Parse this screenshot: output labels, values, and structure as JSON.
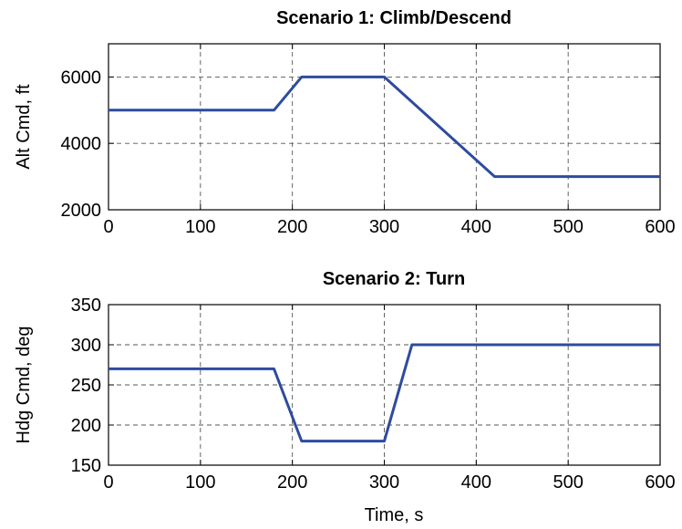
{
  "chart_data": [
    {
      "type": "line",
      "title": "Scenario 1: Climb/Descend",
      "xlabel": "",
      "ylabel": "Alt Cmd, ft",
      "xlim": [
        0,
        600
      ],
      "ylim": [
        2000,
        7000
      ],
      "xticks": [
        0,
        100,
        200,
        300,
        400,
        500,
        600
      ],
      "yticks": [
        2000,
        4000,
        6000
      ],
      "grid": true,
      "series": [
        {
          "color": "#2E4B9E",
          "x": [
            0,
            180,
            210,
            300,
            420,
            600
          ],
          "y": [
            5000,
            5000,
            6000,
            6000,
            3000,
            3000
          ]
        }
      ]
    },
    {
      "type": "line",
      "title": "Scenario 2: Turn",
      "xlabel": "Time, s",
      "ylabel": "Hdg Cmd, deg",
      "xlim": [
        0,
        600
      ],
      "ylim": [
        150,
        350
      ],
      "xticks": [
        0,
        100,
        200,
        300,
        400,
        500,
        600
      ],
      "yticks": [
        150,
        200,
        250,
        300,
        350
      ],
      "grid": true,
      "series": [
        {
          "color": "#2E4B9E",
          "x": [
            0,
            180,
            210,
            300,
            330,
            600
          ],
          "y": [
            270,
            270,
            180,
            180,
            300,
            300
          ]
        }
      ]
    }
  ]
}
